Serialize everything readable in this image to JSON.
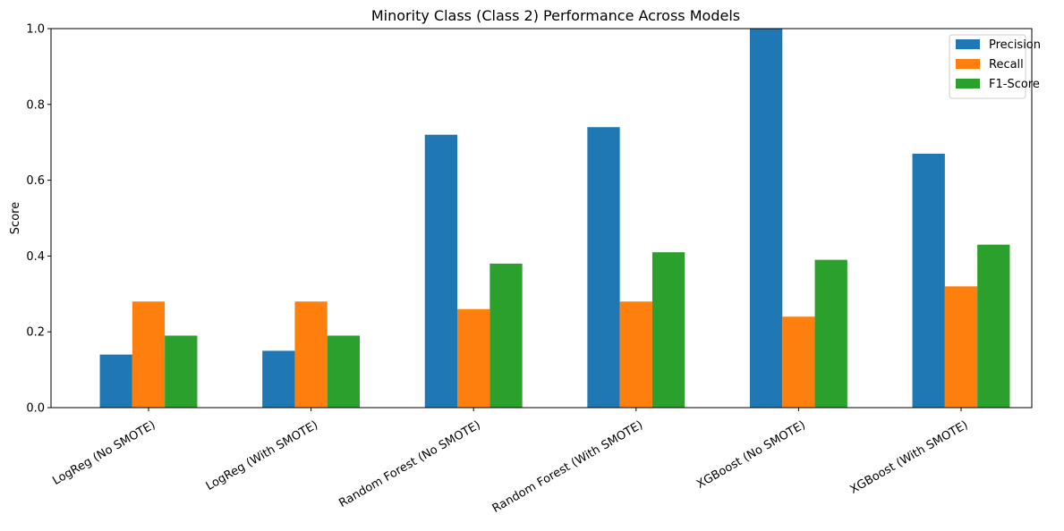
{
  "chart_data": {
    "type": "bar",
    "title": "Minority Class (Class 2) Performance Across Models",
    "xlabel": "",
    "ylabel": "Score",
    "ylim": [
      0,
      1.0
    ],
    "yticks": [
      "0.0",
      "0.2",
      "0.4",
      "0.6",
      "0.8",
      "1.0"
    ],
    "grid": false,
    "legend_position": "top-right",
    "categories": [
      "LogReg (No SMOTE)",
      "LogReg (With SMOTE)",
      "Random Forest (No SMOTE)",
      "Random Forest (With SMOTE)",
      "XGBoost (No SMOTE)",
      "XGBoost (With SMOTE)"
    ],
    "series": [
      {
        "name": "Precision",
        "color": "#1f77b4",
        "values": [
          0.14,
          0.15,
          0.72,
          0.74,
          1.0,
          0.67
        ]
      },
      {
        "name": "Recall",
        "color": "#ff7f0e",
        "values": [
          0.28,
          0.28,
          0.26,
          0.28,
          0.24,
          0.32
        ]
      },
      {
        "name": "F1-Score",
        "color": "#2ca02c",
        "values": [
          0.19,
          0.19,
          0.38,
          0.41,
          0.39,
          0.43
        ]
      }
    ]
  }
}
